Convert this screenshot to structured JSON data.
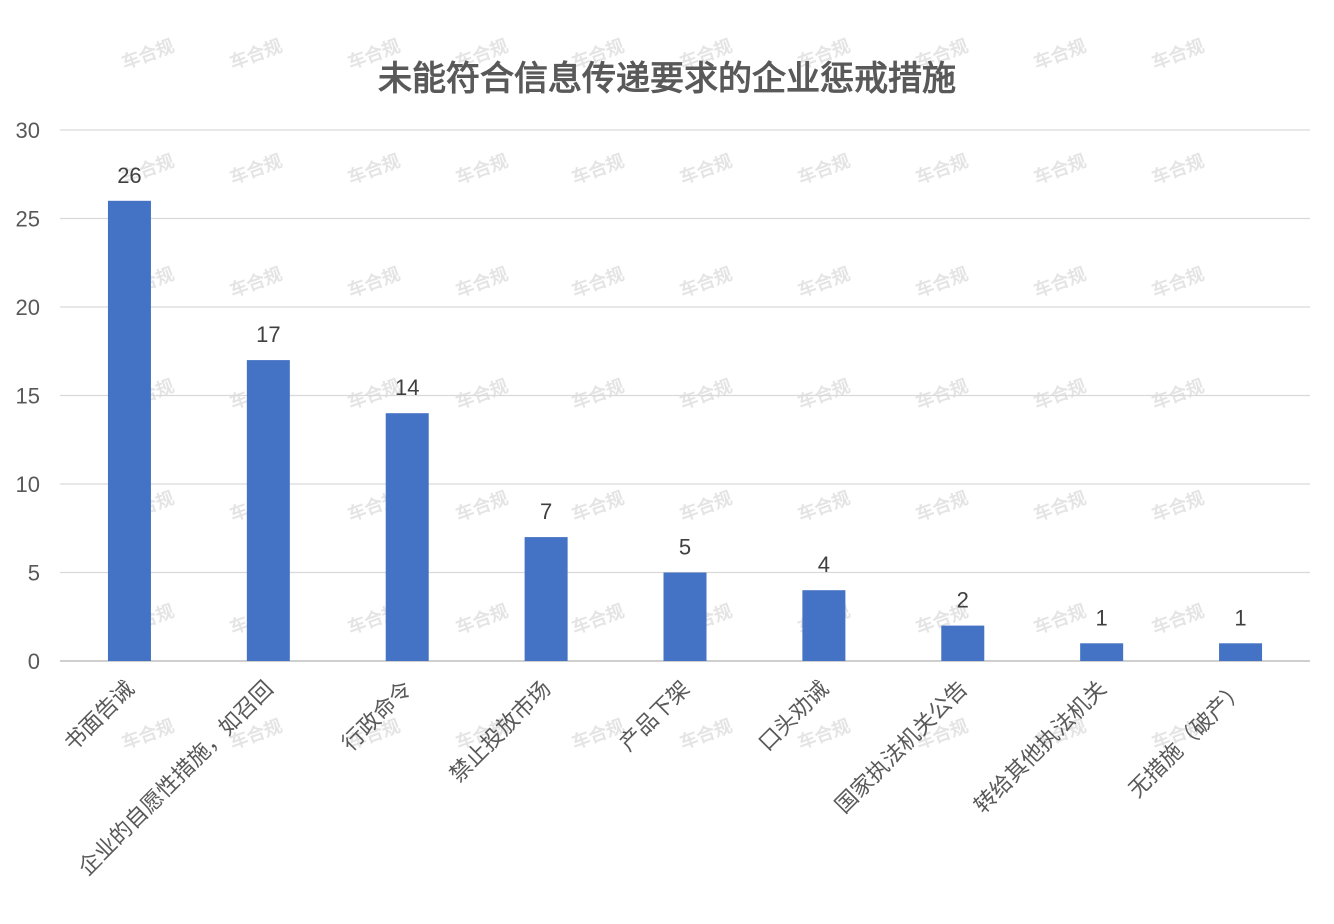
{
  "chart_data": {
    "type": "bar",
    "title": "未能符合信息传递要求的企业惩戒措施",
    "categories": [
      "书面告诫",
      "企业的自愿性措施，如召回",
      "行政命令",
      "禁止投放市场",
      "产品下架",
      "口头劝诫",
      "国家执法机关公告",
      "转给其他执法机关",
      "无措施（破产）"
    ],
    "values": [
      26,
      17,
      14,
      7,
      5,
      4,
      2,
      1,
      1
    ],
    "ylim": [
      0,
      30
    ],
    "yticks": [
      0,
      5,
      10,
      15,
      20,
      25,
      30
    ],
    "grid": true,
    "bar_color": "#4472c4",
    "data_labels": true
  },
  "watermark": "车合规"
}
